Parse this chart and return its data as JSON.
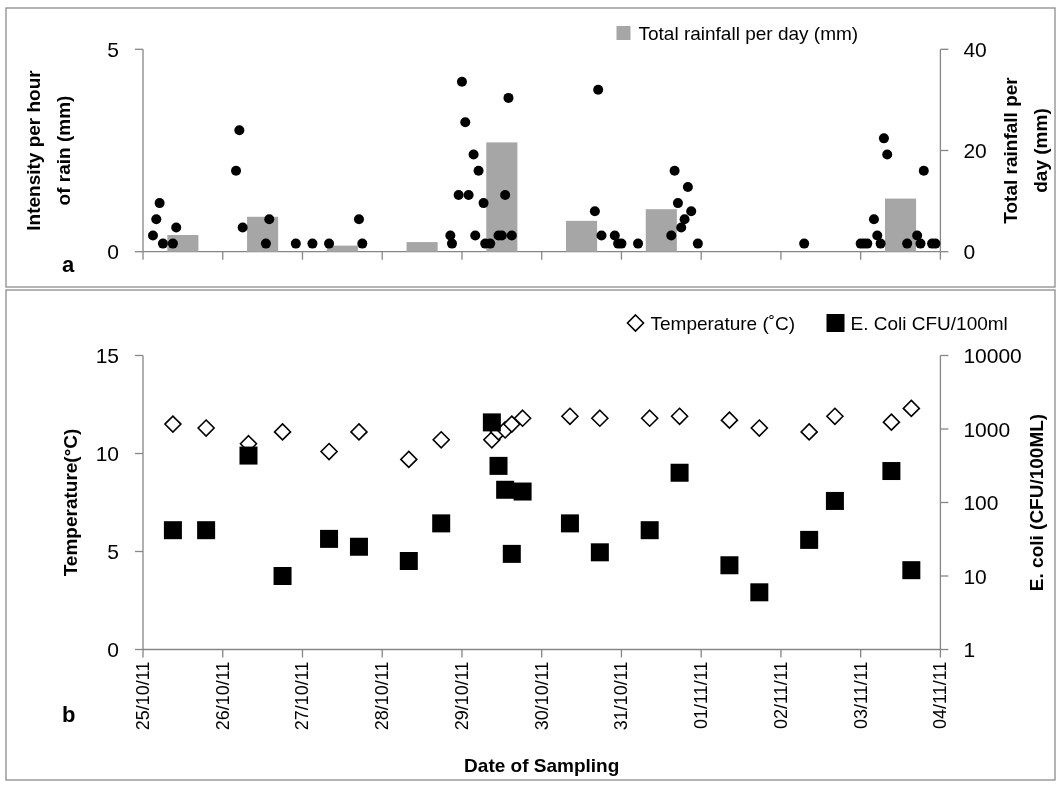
{
  "chart_data": [
    {
      "type": "bar",
      "annotations": [
        "a"
      ],
      "ylabel": "Intensity per hour of rain (mm)",
      "y2label": "Total rainfall per day (mm)",
      "legend": "top right",
      "grid": false,
      "tick_labels": "y",
      "xlim": [
        "--10-25",
        "--11-04"
      ],
      "xticks": [
        {
          "value": "--10-25",
          "label": null
        },
        {
          "value": "--10-26",
          "label": null
        },
        {
          "value": "--10-27",
          "label": null
        },
        {
          "value": "--10-28",
          "label": null
        },
        {
          "value": "--10-29",
          "label": null
        },
        {
          "value": "--10-30",
          "label": null
        },
        {
          "value": "--10-31",
          "label": null
        },
        {
          "value": "--11-01",
          "label": null
        },
        {
          "value": "--11-02",
          "label": null
        },
        {
          "value": "--11-03",
          "label": null
        },
        {
          "value": "--11-04",
          "label": null
        }
      ],
      "ylim": [
        0,
        5
      ],
      "yticks": [
        0,
        5
      ],
      "y2lim": [
        0,
        40
      ],
      "y2ticks": [
        0,
        20,
        40
      ],
      "series": [
        {
          "name": "Total rainfall per day (mm)",
          "color": "#a6a6a6",
          "axis": "y2",
          "x": [
            "--10-25T12:00",
            "--10-26T12:00",
            "--10-27T12:00",
            "--10-28T12:00",
            "--10-29T12:00",
            "--10-30T12:00",
            "--10-31T12:00",
            "--11-03T12:00"
          ],
          "values": [
            3.3,
            6.9,
            1.2,
            1.9,
            21.6,
            6.1,
            8.4,
            10.5
          ]
        },
        {
          "type": "scatter",
          "color": "#000000",
          "marker": "circle",
          "x": [
            "--10-25T03:00",
            "--10-25T04:00",
            "--10-25T05:00",
            "--10-25T06:00",
            "--10-25T09:00",
            "--10-25T10:00",
            "--10-26T04:00",
            "--10-26T05:00",
            "--10-26T06:00",
            "--10-26T13:00",
            "--10-26T14:00",
            "--10-26T22:00",
            "--10-27T03:00",
            "--10-27T08:00",
            "--10-27T17:00",
            "--10-27T18:00",
            "--10-28T20:30",
            "--10-28T21:00",
            "--10-28T23:00",
            "--10-29T00:00",
            "--10-29T01:00",
            "--10-29T02:00",
            "--10-29T03:30",
            "--10-29T04:00",
            "--10-29T05:00",
            "--10-29T06:30",
            "--10-29T07:00",
            "--10-29T08:30",
            "--10-29T11:00",
            "--10-29T12:00",
            "--10-29T13:00",
            "--10-29T14:00",
            "--10-29T15:00",
            "--10-30T16:00",
            "--10-30T17:00",
            "--10-30T18:00",
            "--10-30T22:00",
            "--10-30T23:00",
            "--10-31T00:00",
            "--10-31T05:00",
            "--10-31T15:00",
            "--10-31T16:00",
            "--10-31T17:00",
            "--10-31T18:00",
            "--10-31T19:00",
            "--10-31T20:00",
            "--10-31T21:00",
            "--10-31T23:00",
            "--11-02T07:00",
            "--11-03T00:00",
            "--11-03T01:00",
            "--11-03T02:00",
            "--11-03T04:00",
            "--11-03T05:00",
            "--11-03T06:00",
            "--11-03T07:00",
            "--11-03T08:00",
            "--11-03T14:00",
            "--11-03T17:00",
            "--11-03T18:00",
            "--11-03T19:00",
            "--11-03T21:30",
            "--11-03T22:30"
          ],
          "values": [
            0.4,
            0.8,
            1.2,
            0.2,
            0.2,
            0.6,
            2.0,
            3.0,
            0.6,
            0.2,
            0.8,
            0.2,
            0.2,
            0.2,
            0.8,
            0.2,
            0.4,
            0.2,
            1.4,
            4.2,
            3.2,
            1.4,
            2.4,
            0.4,
            2.0,
            1.2,
            0.2,
            0.2,
            0.4,
            0.4,
            1.4,
            3.8,
            0.4,
            1.0,
            4.0,
            0.4,
            0.4,
            0.2,
            0.2,
            0.2,
            0.4,
            2.0,
            1.2,
            0.6,
            0.8,
            1.6,
            1.0,
            0.2,
            0.2,
            0.2,
            0.2,
            0.2,
            0.8,
            0.4,
            0.2,
            2.8,
            2.4,
            0.2,
            0.4,
            0.2,
            2.0,
            0.2,
            0.2
          ]
        }
      ]
    },
    {
      "type": "scatter",
      "annotations": [
        "b"
      ],
      "xlabel": "Date of Sampling",
      "ylabel": "Temperature(°C)",
      "y2label": "E. coli (CFU/100ML)",
      "legend": "top right",
      "grid": false,
      "log": "y2",
      "xlim": [
        "--10-25",
        "--11-04"
      ],
      "xticks": [
        {
          "value": "--10-25",
          "label": "25/10/11"
        },
        {
          "value": "--10-26",
          "label": "26/10/11"
        },
        {
          "value": "--10-27",
          "label": "27/10/11"
        },
        {
          "value": "--10-28",
          "label": "28/10/11"
        },
        {
          "value": "--10-29",
          "label": "29/10/11"
        },
        {
          "value": "--10-30",
          "label": "30/10/11"
        },
        {
          "value": "--10-31",
          "label": "31/10/11"
        },
        {
          "value": "--11-01",
          "label": "01/11/11"
        },
        {
          "value": "--11-02",
          "label": "02/11/11"
        },
        {
          "value": "--11-03",
          "label": "03/11/11"
        },
        {
          "value": "--11-04",
          "label": "04/11/11"
        }
      ],
      "ylim": [
        0,
        15
      ],
      "yticks": [
        0,
        5,
        10,
        15
      ],
      "y2lim": [
        1,
        10000
      ],
      "y2ticks": [
        1,
        10,
        100,
        1000,
        10000
      ],
      "x": [
        "--10-25T09:00",
        "--10-25T19:00",
        "--10-26T07:45",
        "--10-26T18:00",
        "--10-27T08:00",
        "--10-27T17:00",
        "--10-28T08:00",
        "--10-28T17:45",
        "--10-29T09:00",
        "--10-29T11:00",
        "--10-29T13:00",
        "--10-29T15:00",
        "--10-29T18:15",
        "--10-30T08:30",
        "--10-30T17:30",
        "--10-31T08:30",
        "--10-31T17:30",
        "--11-01T08:30",
        "--11-01T17:30",
        "--11-02T08:30",
        "--11-02T16:15",
        "--11-03T09:15",
        "--11-03T15:15"
      ],
      "series": [
        {
          "name": "Temperature (˚C)",
          "color": "#000000",
          "marker": "diamond",
          "values": [
            11.5,
            11.3,
            10.5,
            11.1,
            10.1,
            11.1,
            9.7,
            10.7,
            10.7,
            11.1,
            11.2,
            11.5,
            11.8,
            11.9,
            11.8,
            11.8,
            11.9,
            11.7,
            11.3,
            11.1,
            11.9,
            11.6,
            12.3
          ]
        },
        {
          "name": "E. Coli CFU/100ml",
          "color": "#000000",
          "marker": "square",
          "axis": "y2",
          "values": [
            42,
            42,
            435,
            10,
            32,
            25,
            16,
            52,
            1230,
            315,
            149,
            20,
            141,
            52,
            21,
            42,
            254,
            14,
            6,
            31,
            105,
            268,
            12
          ]
        }
      ]
    }
  ]
}
